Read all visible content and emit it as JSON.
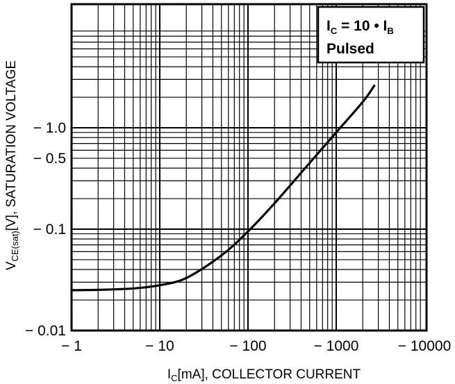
{
  "chart_data": {
    "type": "line",
    "title": "",
    "xlabel_main": "I",
    "xlabel_sub": "C",
    "xlabel_rest": "[mA], COLLECTOR CURRENT",
    "ylabel_main": "V",
    "ylabel_sub": "CE(sat)",
    "ylabel_rest": "[V], SATURATION VOLTAGE",
    "x_scale": "log",
    "y_scale": "log",
    "xlim": [
      1,
      3000
    ],
    "ylim": [
      0.01,
      3.2
    ],
    "grid": true,
    "x_ticks": [
      {
        "value": 1,
        "label": "− 1"
      },
      {
        "value": 10,
        "label": "− 10"
      },
      {
        "value": 100,
        "label": "− 100"
      },
      {
        "value": 1000,
        "label": "− 1000"
      },
      {
        "value": 10000,
        "label": "− 10000"
      }
    ],
    "y_ticks": [
      {
        "value": 0.01,
        "label": "− 0.01"
      },
      {
        "value": 0.1,
        "label": "− 0.1"
      },
      {
        "value": 0.5,
        "label": "− 0.5"
      },
      {
        "value": 1.0,
        "label": "− 1.0"
      }
    ],
    "legend": {
      "placement": "top-right",
      "line1_a": "I",
      "line1_a_sub": "C",
      "line1_b": " = 10 • I",
      "line1_b_sub": "B",
      "line2": "Pulsed"
    },
    "series": [
      {
        "x": [
          1,
          2,
          5,
          10,
          20,
          50,
          100,
          200,
          500,
          1000,
          2000,
          2700
        ],
        "y": [
          0.025,
          0.0252,
          0.026,
          0.028,
          0.033,
          0.055,
          0.095,
          0.18,
          0.45,
          0.9,
          1.8,
          2.6
        ]
      }
    ]
  }
}
